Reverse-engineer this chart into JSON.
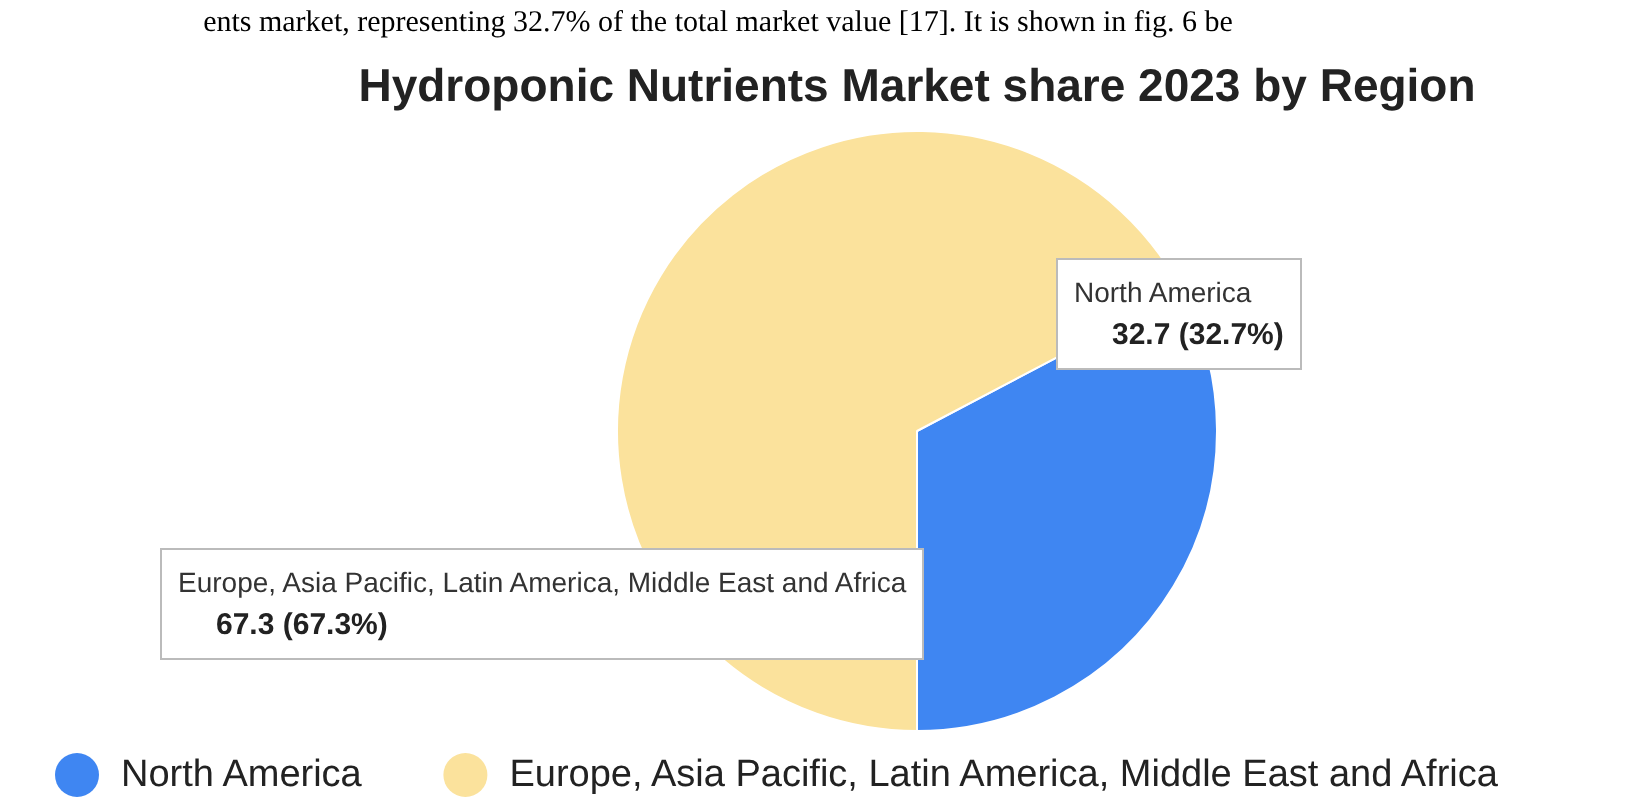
{
  "chart_data": {
    "type": "pie",
    "title": "Hydroponic Nutrients Market share 2023 by Region",
    "categories": [
      "North America",
      "Europe, Asia Pacific, Latin America, Middle East and Africa"
    ],
    "values": [
      32.7,
      67.3
    ],
    "colors": [
      "#3f86f2",
      "#fbe29c"
    ],
    "value_labels": [
      "32.7 (32.7%)",
      "67.3 (67.3%)"
    ],
    "legend": "bottom",
    "annotations": [
      "ents market, representing 32.7% of the total market value [17]. It is shown in fig. 6 be"
    ]
  }
}
